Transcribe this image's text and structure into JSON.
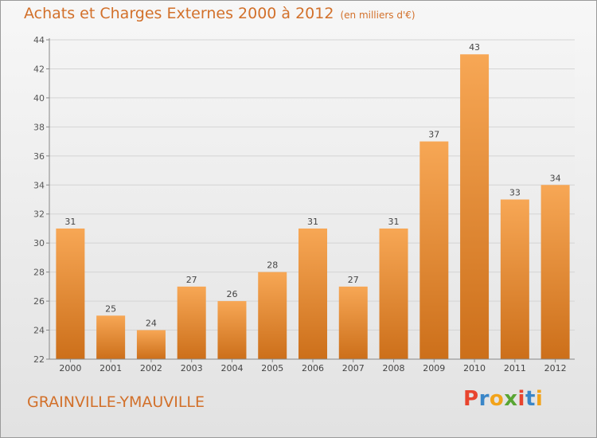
{
  "header": {
    "title": "Achats et Charges Externes 2000 à 2012",
    "subtitle": "(en milliers d'€)"
  },
  "footer": {
    "commune": "GRAINVILLE-YMAUVILLE",
    "logo_letters": [
      "P",
      "r",
      "o",
      "x",
      "i",
      "t",
      "i"
    ]
  },
  "chart_data": {
    "type": "bar",
    "title": "Achats et Charges Externes 2000 à 2012",
    "subtitle": "(en milliers d'€)",
    "categories": [
      "2000",
      "2001",
      "2002",
      "2003",
      "2004",
      "2005",
      "2006",
      "2007",
      "2008",
      "2009",
      "2010",
      "2011",
      "2012"
    ],
    "values": [
      31,
      25,
      24,
      27,
      26,
      28,
      31,
      27,
      31,
      37,
      43,
      33,
      34
    ],
    "ylim": [
      22,
      44
    ],
    "yticks": [
      22,
      24,
      26,
      28,
      30,
      32,
      34,
      36,
      38,
      40,
      42,
      44
    ],
    "grid": true,
    "data_labels": true,
    "colors": {
      "bar_top": "#f7a755",
      "bar_bottom": "#cc6f1a",
      "title": "#d2702a"
    }
  }
}
